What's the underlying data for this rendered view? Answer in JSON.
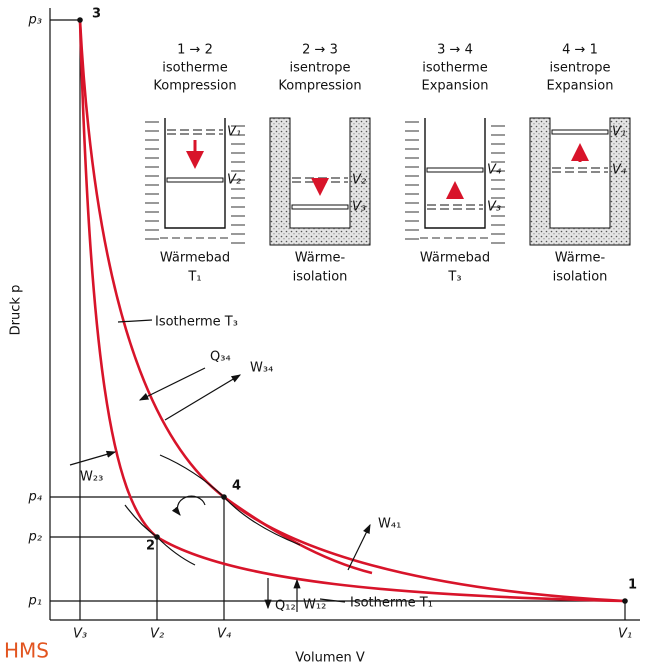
{
  "axes": {
    "y_label": "Druck p",
    "x_label": "Volumen V",
    "y_ticks": [
      "p₃",
      "p₄",
      "p₂",
      "p₁"
    ],
    "x_ticks": [
      "V₃",
      "V₂",
      "V₄",
      "V₁"
    ]
  },
  "points": [
    "1",
    "2",
    "3",
    "4"
  ],
  "panels": [
    {
      "step": "1 → 2",
      "process": "isotherme",
      "action": "Kompression",
      "v_upper": "V₁",
      "v_lower": "V₂",
      "bath": [
        "Wärmebad",
        "T₁"
      ]
    },
    {
      "step": "2 → 3",
      "process": "isentrope",
      "action": "Kompression",
      "v_upper": "V₂",
      "v_lower": "V₃",
      "bath": [
        "Wärme-",
        "isolation"
      ]
    },
    {
      "step": "3 → 4",
      "process": "isotherme",
      "action": "Expansion",
      "v_upper": "V₄",
      "v_lower": "V₃",
      "bath": [
        "Wärmebad",
        "T₃"
      ]
    },
    {
      "step": "4 → 1",
      "process": "isentrope",
      "action": "Expansion",
      "v_upper": "V₁",
      "v_lower": "V₄",
      "bath": [
        "Wärme-",
        "isolation"
      ]
    }
  ],
  "annotations": [
    "Isotherme T₃",
    "Q₃₄",
    "W₃₄",
    "W₂₃",
    "W₄₁",
    "Q₁₂",
    "W₁₂",
    "Isotherme T₁"
  ],
  "footer": "HMS"
}
